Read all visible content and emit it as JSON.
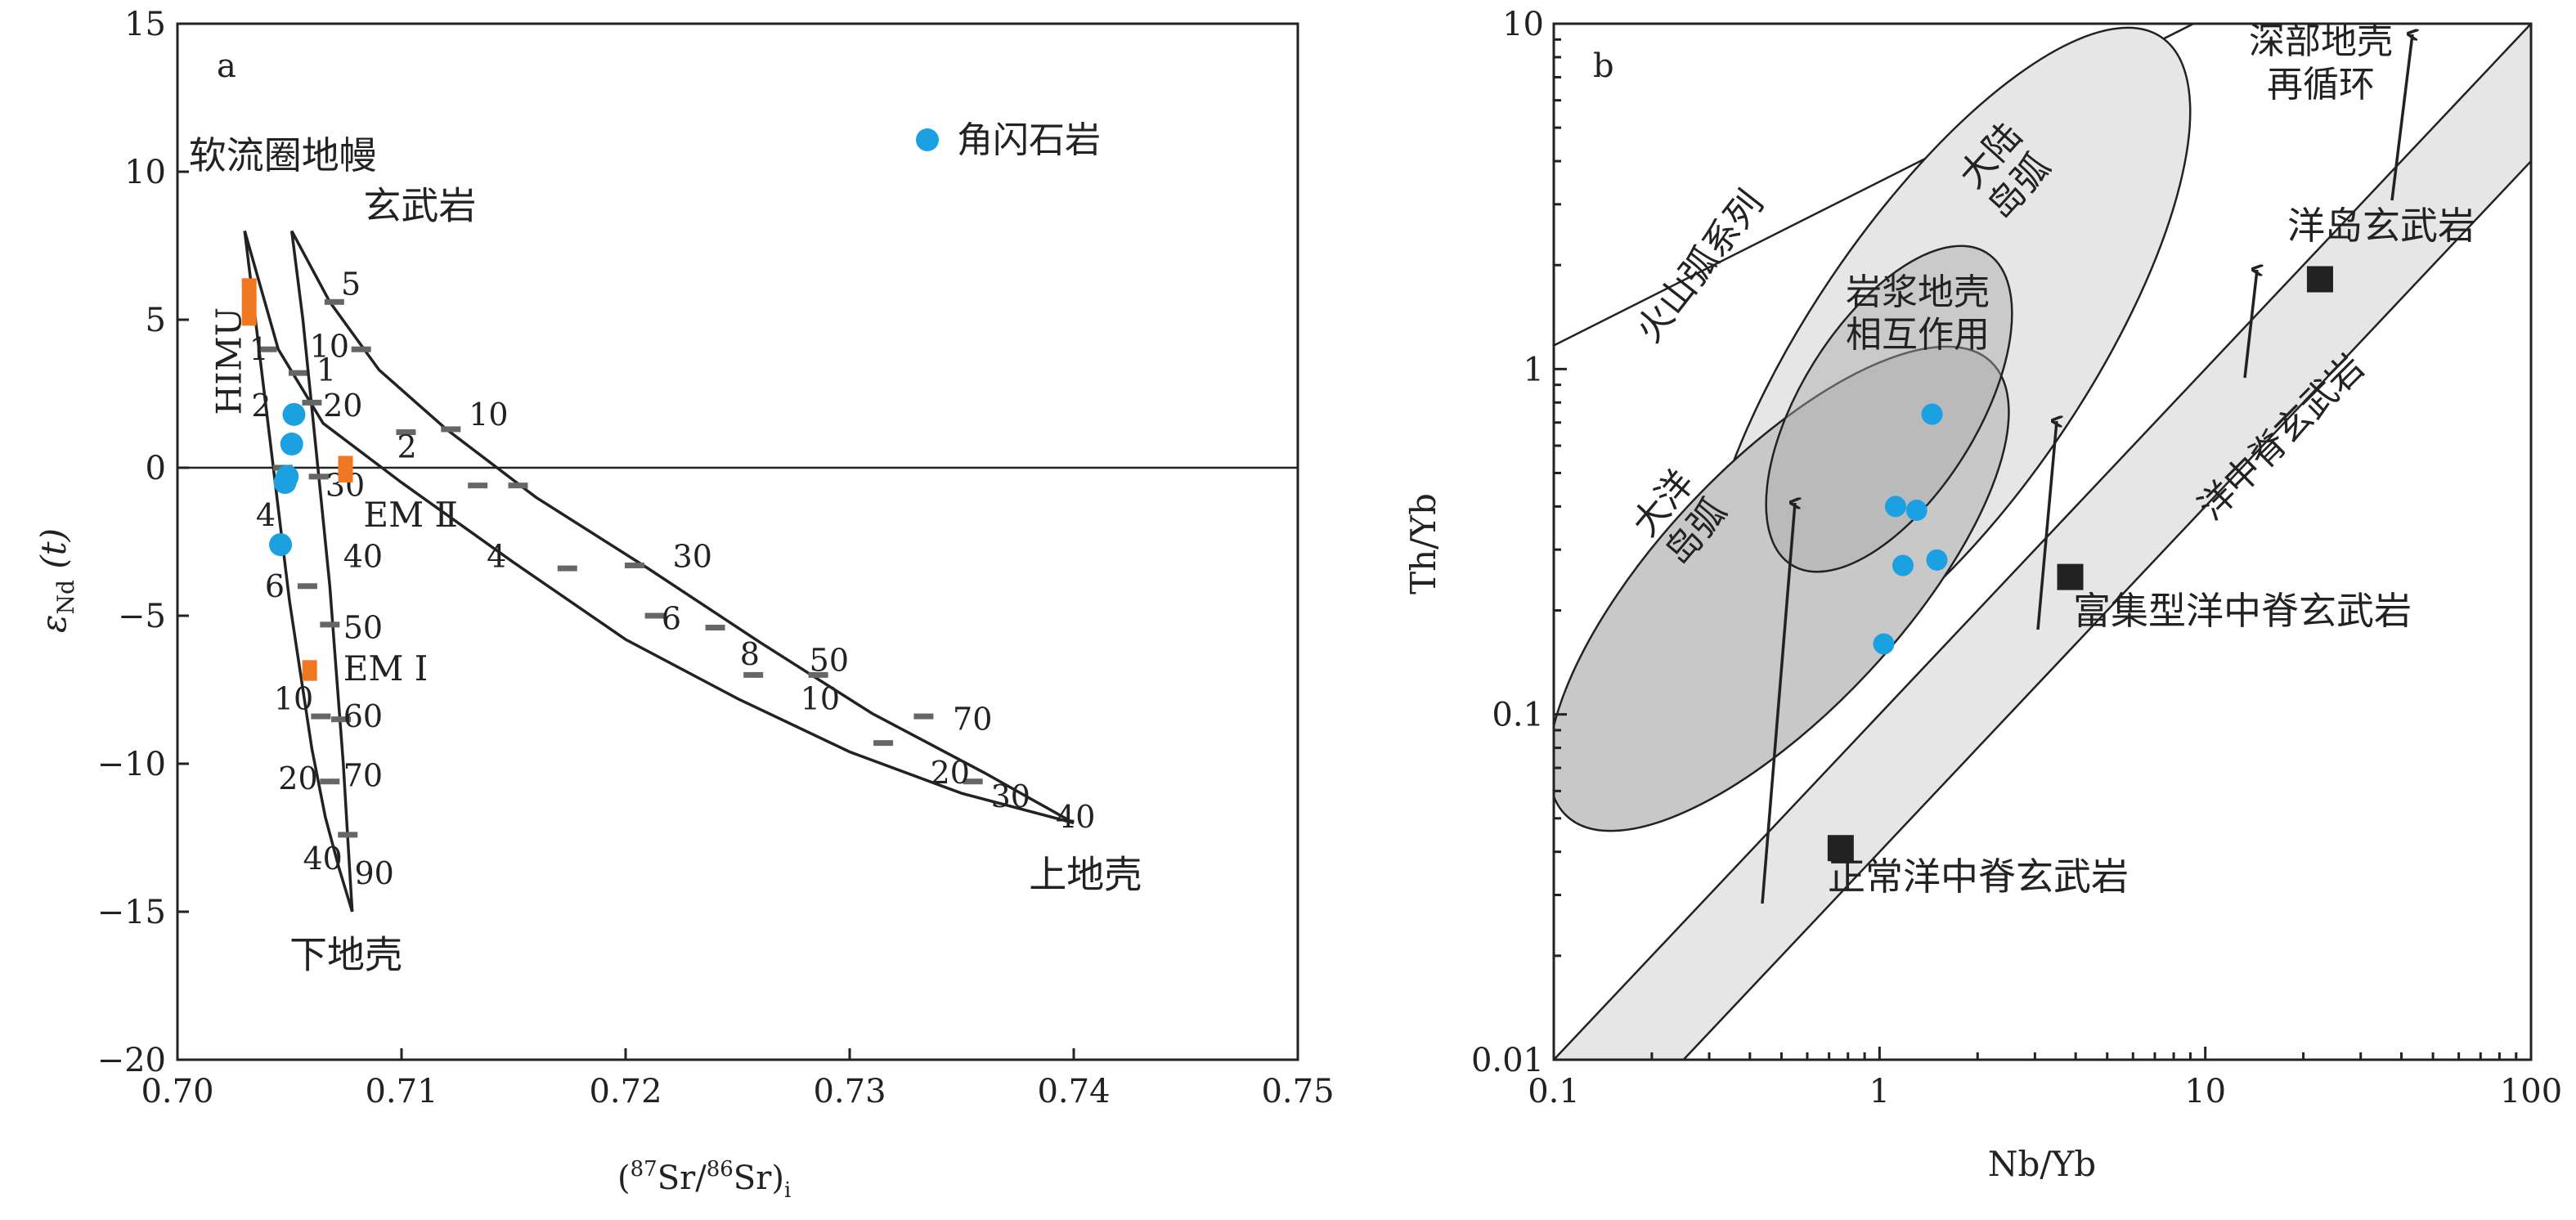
{
  "chart_data": [
    {
      "panel_label": "a",
      "type": "line",
      "xlabel": "(87Sr/86Sr)i",
      "xlabel_parts": {
        "open": "(",
        "sup1": "87",
        "mid": "Sr/",
        "sup2": "86",
        "close": "Sr)",
        "sub": "i"
      },
      "ylabel_parts": {
        "base": "ε",
        "sub": "Nd",
        "rest": " (t)"
      },
      "xlim": [
        0.7,
        0.75
      ],
      "ylim": [
        -20,
        15
      ],
      "xticks": [
        0.7,
        0.71,
        0.72,
        0.73,
        0.74,
        0.75
      ],
      "xtick_labels": [
        "0.70",
        "0.71",
        "0.72",
        "0.73",
        "0.74",
        "0.75"
      ],
      "yticks": [
        -20,
        -15,
        -10,
        -5,
        0,
        5,
        10,
        15
      ],
      "ytick_labels": [
        "−20",
        "−15",
        "−10",
        "−5",
        "0",
        "5",
        "10",
        "15"
      ],
      "grid": false,
      "reference_line_y": 0,
      "legend": {
        "position": "top-right",
        "entries": [
          {
            "label": "角闪石岩",
            "marker": "circle",
            "color": "#1ba1e2"
          }
        ]
      },
      "endmembers": [
        {
          "label": "软流圈地幔",
          "x": 0.703,
          "y": 8.0
        },
        {
          "label": "玄武岩",
          "x": 0.7051,
          "y": 8.0
        },
        {
          "label": "上地壳",
          "x": 0.74,
          "y": -12.0
        },
        {
          "label": "下地壳",
          "x": 0.7078,
          "y": -15.0
        }
      ],
      "mixing_curves": [
        {
          "name": "asthenosphere-lower crust",
          "points": [
            [
              0.703,
              8.0
            ],
            [
              0.7034,
              5.5
            ],
            [
              0.7038,
              3.0
            ],
            [
              0.7042,
              0.5
            ],
            [
              0.7046,
              -2.0
            ],
            [
              0.705,
              -4.5
            ],
            [
              0.7055,
              -7.0
            ],
            [
              0.706,
              -9.5
            ],
            [
              0.7066,
              -11.8
            ],
            [
              0.7072,
              -13.5
            ],
            [
              0.7078,
              -15.0
            ]
          ],
          "ticks": [
            [
              0.704,
              4.0
            ],
            [
              0.7047,
              0.0
            ],
            [
              0.7058,
              -4.0
            ],
            [
              0.7064,
              -8.4
            ],
            [
              0.7068,
              -10.6
            ]
          ]
        },
        {
          "name": "asthenosphere-upper crust",
          "points": [
            [
              0.703,
              8.0
            ],
            [
              0.7045,
              4.0
            ],
            [
              0.7065,
              1.5
            ],
            [
              0.71,
              -0.5
            ],
            [
              0.715,
              -3.2
            ],
            [
              0.72,
              -5.8
            ],
            [
              0.725,
              -7.8
            ],
            [
              0.73,
              -9.6
            ],
            [
              0.735,
              -11.0
            ],
            [
              0.74,
              -12.0
            ]
          ],
          "ticks": [
            [
              0.7054,
              3.2
            ],
            [
              0.7102,
              1.2
            ],
            [
              0.7134,
              -0.6
            ],
            [
              0.7174,
              -3.4
            ],
            [
              0.7213,
              -5.0
            ],
            [
              0.7257,
              -7.0
            ],
            [
              0.7315,
              -9.3
            ],
            [
              0.7355,
              -10.6
            ]
          ]
        },
        {
          "name": "basalt-lower crust",
          "points": [
            [
              0.7051,
              8.0
            ],
            [
              0.7056,
              5.0
            ],
            [
              0.706,
              2.0
            ],
            [
              0.7064,
              -1.0
            ],
            [
              0.7068,
              -4.0
            ],
            [
              0.7071,
              -7.0
            ],
            [
              0.7074,
              -10.0
            ],
            [
              0.7076,
              -12.5
            ],
            [
              0.7078,
              -15.0
            ]
          ],
          "ticks": [
            [
              0.706,
              2.2
            ],
            [
              0.7063,
              -0.3
            ],
            [
              0.7068,
              -5.3
            ],
            [
              0.7073,
              -8.5
            ],
            [
              0.7076,
              -12.4
            ]
          ]
        },
        {
          "name": "basalt-upper crust",
          "points": [
            [
              0.7051,
              8.0
            ],
            [
              0.7068,
              5.6
            ],
            [
              0.709,
              3.3
            ],
            [
              0.712,
              1.3
            ],
            [
              0.716,
              -1.0
            ],
            [
              0.721,
              -3.4
            ],
            [
              0.726,
              -5.9
            ],
            [
              0.731,
              -8.3
            ],
            [
              0.736,
              -10.3
            ],
            [
              0.74,
              -12.0
            ]
          ],
          "ticks": [
            [
              0.707,
              5.6
            ],
            [
              0.7082,
              4.0
            ],
            [
              0.7122,
              1.3
            ],
            [
              0.7152,
              -0.6
            ],
            [
              0.7204,
              -3.3
            ],
            [
              0.724,
              -5.4
            ],
            [
              0.7286,
              -7.0
            ],
            [
              0.7333,
              -8.4
            ]
          ]
        }
      ],
      "curve_labels": [
        {
          "text": "5",
          "x": 0.7073,
          "y": 6.2
        },
        {
          "text": "10",
          "x": 0.7059,
          "y": 4.1
        },
        {
          "text": "1",
          "x": 0.7062,
          "y": 3.3
        },
        {
          "text": "20",
          "x": 0.7065,
          "y": 2.1
        },
        {
          "text": "10",
          "x": 0.713,
          "y": 1.8
        },
        {
          "text": "2",
          "x": 0.7098,
          "y": 0.7
        },
        {
          "text": "30",
          "x": 0.7066,
          "y": -0.6
        },
        {
          "text": "40",
          "x": 0.7074,
          "y": -3.0
        },
        {
          "text": "30",
          "x": 0.7221,
          "y": -3.0
        },
        {
          "text": "4",
          "x": 0.7138,
          "y": -3.0
        },
        {
          "text": "50",
          "x": 0.7074,
          "y": -5.4
        },
        {
          "text": "6",
          "x": 0.7216,
          "y": -5.1
        },
        {
          "text": "8",
          "x": 0.7251,
          "y": -6.3
        },
        {
          "text": "50",
          "x": 0.7282,
          "y": -6.5
        },
        {
          "text": "10",
          "x": 0.7278,
          "y": -7.8
        },
        {
          "text": "60",
          "x": 0.7074,
          "y": -8.4
        },
        {
          "text": "70",
          "x": 0.7346,
          "y": -8.5
        },
        {
          "text": "70",
          "x": 0.7074,
          "y": -10.4
        },
        {
          "text": "20",
          "x": 0.7336,
          "y": -10.3
        },
        {
          "text": "30",
          "x": 0.7363,
          "y": -11.1
        },
        {
          "text": "40",
          "x": 0.7392,
          "y": -11.8
        },
        {
          "text": "90",
          "x": 0.7079,
          "y": -13.7
        },
        {
          "text": "1",
          "x": 0.7032,
          "y": 4.0
        },
        {
          "text": "2",
          "x": 0.7033,
          "y": 2.1
        },
        {
          "text": "4",
          "x": 0.7035,
          "y": -1.6
        },
        {
          "text": "6",
          "x": 0.7039,
          "y": -4.0
        },
        {
          "text": "10",
          "x": 0.7043,
          "y": -7.8
        },
        {
          "text": "20",
          "x": 0.7045,
          "y": -10.5
        },
        {
          "text": "40",
          "x": 0.7056,
          "y": -13.2
        }
      ],
      "mantle_sources": [
        {
          "label": "HIMU",
          "x": 0.7032,
          "y_range": [
            4.8,
            6.4
          ],
          "color": "#f07820"
        },
        {
          "label": "EM Ⅱ",
          "x": 0.7075,
          "y_range": [
            -0.5,
            0.4
          ],
          "color": "#f07820"
        },
        {
          "label": "EM Ⅰ",
          "x": 0.7059,
          "y_range": [
            -7.2,
            -6.5
          ],
          "color": "#f07820"
        }
      ],
      "series": [
        {
          "name": "角闪石岩",
          "color": "#1ba1e2",
          "points": [
            [
              0.7052,
              1.8
            ],
            [
              0.7051,
              0.8
            ],
            [
              0.7049,
              -0.3
            ],
            [
              0.7048,
              -0.5
            ],
            [
              0.7046,
              -2.6
            ]
          ]
        }
      ]
    },
    {
      "panel_label": "b",
      "type": "scatter",
      "xlabel": "Nb/Yb",
      "ylabel": "Th/Yb",
      "x_scale": "log",
      "y_scale": "log",
      "xlim": [
        0.1,
        100
      ],
      "ylim": [
        0.01,
        10
      ],
      "xticks": [
        0.1,
        1,
        10,
        100
      ],
      "xtick_labels": [
        "0.1",
        "1",
        "10",
        "100"
      ],
      "yticks": [
        0.01,
        0.1,
        1,
        10
      ],
      "ytick_labels": [
        "0.01",
        "0.1",
        "1",
        "10"
      ],
      "grid": false,
      "fields": [
        {
          "label": "火山弧系列"
        },
        {
          "label": "大陆岛弧",
          "lines": [
            "大陆",
            "岛弧"
          ]
        },
        {
          "label": "大洋岛弧",
          "lines": [
            "大洋",
            "岛弧"
          ]
        },
        {
          "label": "岩浆地壳相互作用",
          "lines": [
            "岩浆地壳",
            "相互作用"
          ]
        },
        {
          "label": "深部地壳再循环",
          "lines": [
            "深部地壳",
            "再循环"
          ]
        },
        {
          "label": "洋中脊玄武岩"
        }
      ],
      "reference_points": [
        {
          "label": "正常洋中脊玄武岩",
          "x": 0.76,
          "y": 0.041
        },
        {
          "label": "富集型洋中脊玄武岩",
          "x": 3.85,
          "y": 0.25
        },
        {
          "label": "洋岛玄武岩",
          "x": 22.5,
          "y": 1.82
        }
      ],
      "series": [
        {
          "name": "角闪石岩",
          "color": "#1ba1e2",
          "points": [
            [
              1.45,
              0.74
            ],
            [
              1.12,
              0.4
            ],
            [
              1.3,
              0.39
            ],
            [
              1.18,
              0.27
            ],
            [
              1.5,
              0.28
            ],
            [
              1.03,
              0.16
            ]
          ]
        }
      ]
    }
  ]
}
